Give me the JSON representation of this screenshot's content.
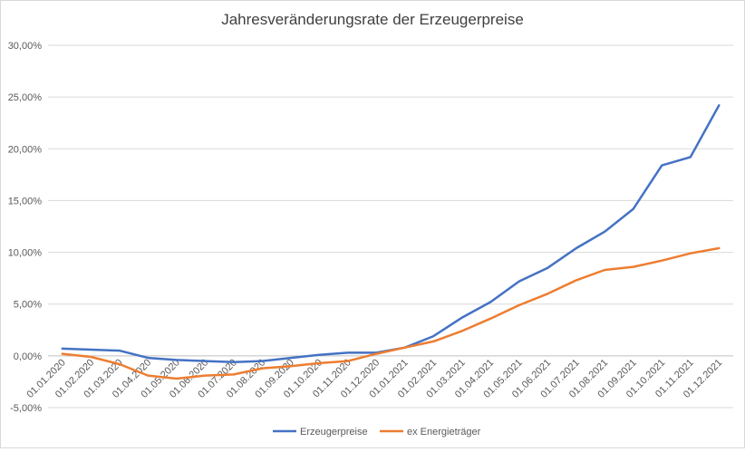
{
  "chart_data": {
    "type": "line",
    "title": "Jahresveränderungsrate der Erzeugerpreise",
    "xlabel": "",
    "ylabel": "",
    "ylim": [
      -5,
      30
    ],
    "y_ticks": [
      -5,
      0,
      5,
      10,
      15,
      20,
      25,
      30
    ],
    "y_tick_labels": [
      "-5,00%",
      "0,00%",
      "5,00%",
      "10,00%",
      "15,00%",
      "20,00%",
      "25,00%",
      "30,00%"
    ],
    "grid": true,
    "legend_position": "bottom",
    "categories": [
      "01.01.2020",
      "01.02.2020",
      "01.03.2020",
      "01.04.2020",
      "01.05.2020",
      "01.06.2020",
      "01.07.2020",
      "01.08.2020",
      "01.09.2020",
      "01.10.2020",
      "01.11.2020",
      "01.12.2020",
      "01.01.2021",
      "01.02.2021",
      "01.03.2021",
      "01.04.2021",
      "01.05.2021",
      "01.06.2021",
      "01.07.2021",
      "01.08.2021",
      "01.09.2021",
      "01.10.2021",
      "01.11.2021",
      "01.12.2021"
    ],
    "series": [
      {
        "name": "Erzeugerpreise",
        "color": "#4472c4",
        "values": [
          0.7,
          0.6,
          0.5,
          -0.2,
          -0.4,
          -0.5,
          -0.6,
          -0.5,
          -0.2,
          0.1,
          0.3,
          0.3,
          0.8,
          1.9,
          3.7,
          5.2,
          7.2,
          8.5,
          10.4,
          12.0,
          14.2,
          18.4,
          19.2,
          24.2
        ]
      },
      {
        "name": "ex Energieträger",
        "color": "#ed7d31",
        "values": [
          0.2,
          -0.1,
          -0.8,
          -1.9,
          -2.2,
          -1.9,
          -1.8,
          -1.2,
          -1.0,
          -0.7,
          -0.5,
          0.2,
          0.8,
          1.4,
          2.4,
          3.6,
          4.9,
          6.0,
          7.3,
          8.3,
          8.6,
          9.2,
          9.9,
          10.4
        ]
      }
    ]
  }
}
